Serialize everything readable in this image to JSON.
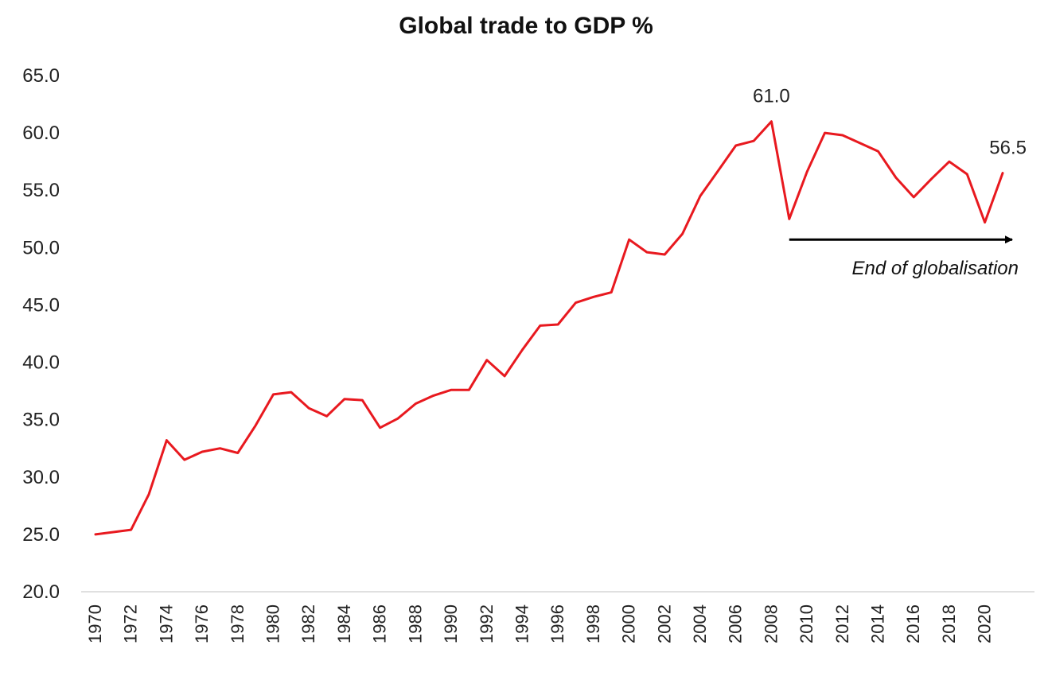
{
  "chart_data": {
    "type": "line",
    "title": "Global trade to GDP %",
    "xlabel": "",
    "ylabel": "",
    "ylim": [
      20,
      65
    ],
    "y_ticks": [
      "20.0",
      "25.0",
      "30.0",
      "35.0",
      "40.0",
      "45.0",
      "50.0",
      "55.0",
      "60.0",
      "65.0"
    ],
    "x_tick_labels": [
      "1970",
      "1972",
      "1974",
      "1976",
      "1978",
      "1980",
      "1982",
      "1984",
      "1986",
      "1988",
      "1990",
      "1992",
      "1994",
      "1996",
      "1998",
      "2000",
      "2002",
      "2004",
      "2006",
      "2008",
      "2010",
      "2012",
      "2014",
      "2016",
      "2018",
      "2020"
    ],
    "grid": false,
    "legend": "none",
    "series": [
      {
        "color": "#e8191f",
        "x": [
          1970,
          1971,
          1972,
          1973,
          1974,
          1975,
          1976,
          1977,
          1978,
          1979,
          1980,
          1981,
          1982,
          1983,
          1984,
          1985,
          1986,
          1987,
          1988,
          1989,
          1990,
          1991,
          1992,
          1993,
          1994,
          1995,
          1996,
          1997,
          1998,
          1999,
          2000,
          2001,
          2002,
          2003,
          2004,
          2005,
          2006,
          2007,
          2008,
          2009,
          2010,
          2011,
          2012,
          2013,
          2014,
          2015,
          2016,
          2017,
          2018,
          2019,
          2020,
          2021
        ],
        "values": [
          25.0,
          25.2,
          25.4,
          28.5,
          33.2,
          31.5,
          32.2,
          32.5,
          32.1,
          34.5,
          37.2,
          37.4,
          36.0,
          35.3,
          36.8,
          36.7,
          34.3,
          35.1,
          36.4,
          37.1,
          37.6,
          37.6,
          40.2,
          38.8,
          41.1,
          43.2,
          43.3,
          45.2,
          45.7,
          46.1,
          50.7,
          49.6,
          49.4,
          51.2,
          54.5,
          56.7,
          58.9,
          59.3,
          61.0,
          52.5,
          56.6,
          60.0,
          59.8,
          59.1,
          58.4,
          56.1,
          54.4,
          56.0,
          57.5,
          56.4,
          52.2,
          56.5
        ]
      }
    ],
    "data_labels": [
      {
        "x": 2008,
        "y": 61.0,
        "text": "61.0"
      },
      {
        "x": 2021,
        "y": 56.5,
        "text": "56.5"
      }
    ],
    "annotation": {
      "text": "End of globalisation",
      "x_start": 2009,
      "x_end": 2021,
      "y": 50.7
    }
  }
}
